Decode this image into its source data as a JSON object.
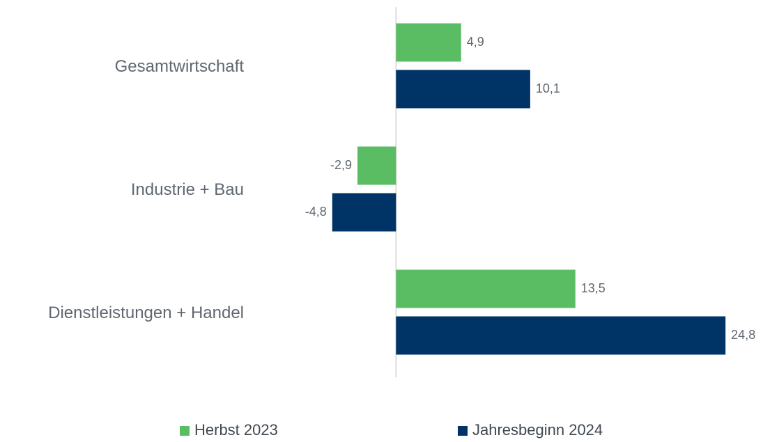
{
  "chart_data": {
    "type": "barh",
    "categories": [
      "Gesamtwirtschaft",
      "Industrie + Bau",
      "Dienstleistungen + Handel"
    ],
    "series": [
      {
        "name": "Herbst 2023",
        "color": "#5bbd63",
        "values": [
          4.9,
          -2.9,
          13.5
        ],
        "value_labels": [
          "4,9",
          "-2,9",
          "13,5"
        ]
      },
      {
        "name": "Jahresbeginn 2024",
        "color": "#003366",
        "values": [
          10.1,
          -4.8,
          24.8
        ],
        "value_labels": [
          "10,1",
          "-4,8",
          "24,8"
        ]
      }
    ],
    "xlim": [
      -5,
      25
    ],
    "legend": "bottom"
  }
}
